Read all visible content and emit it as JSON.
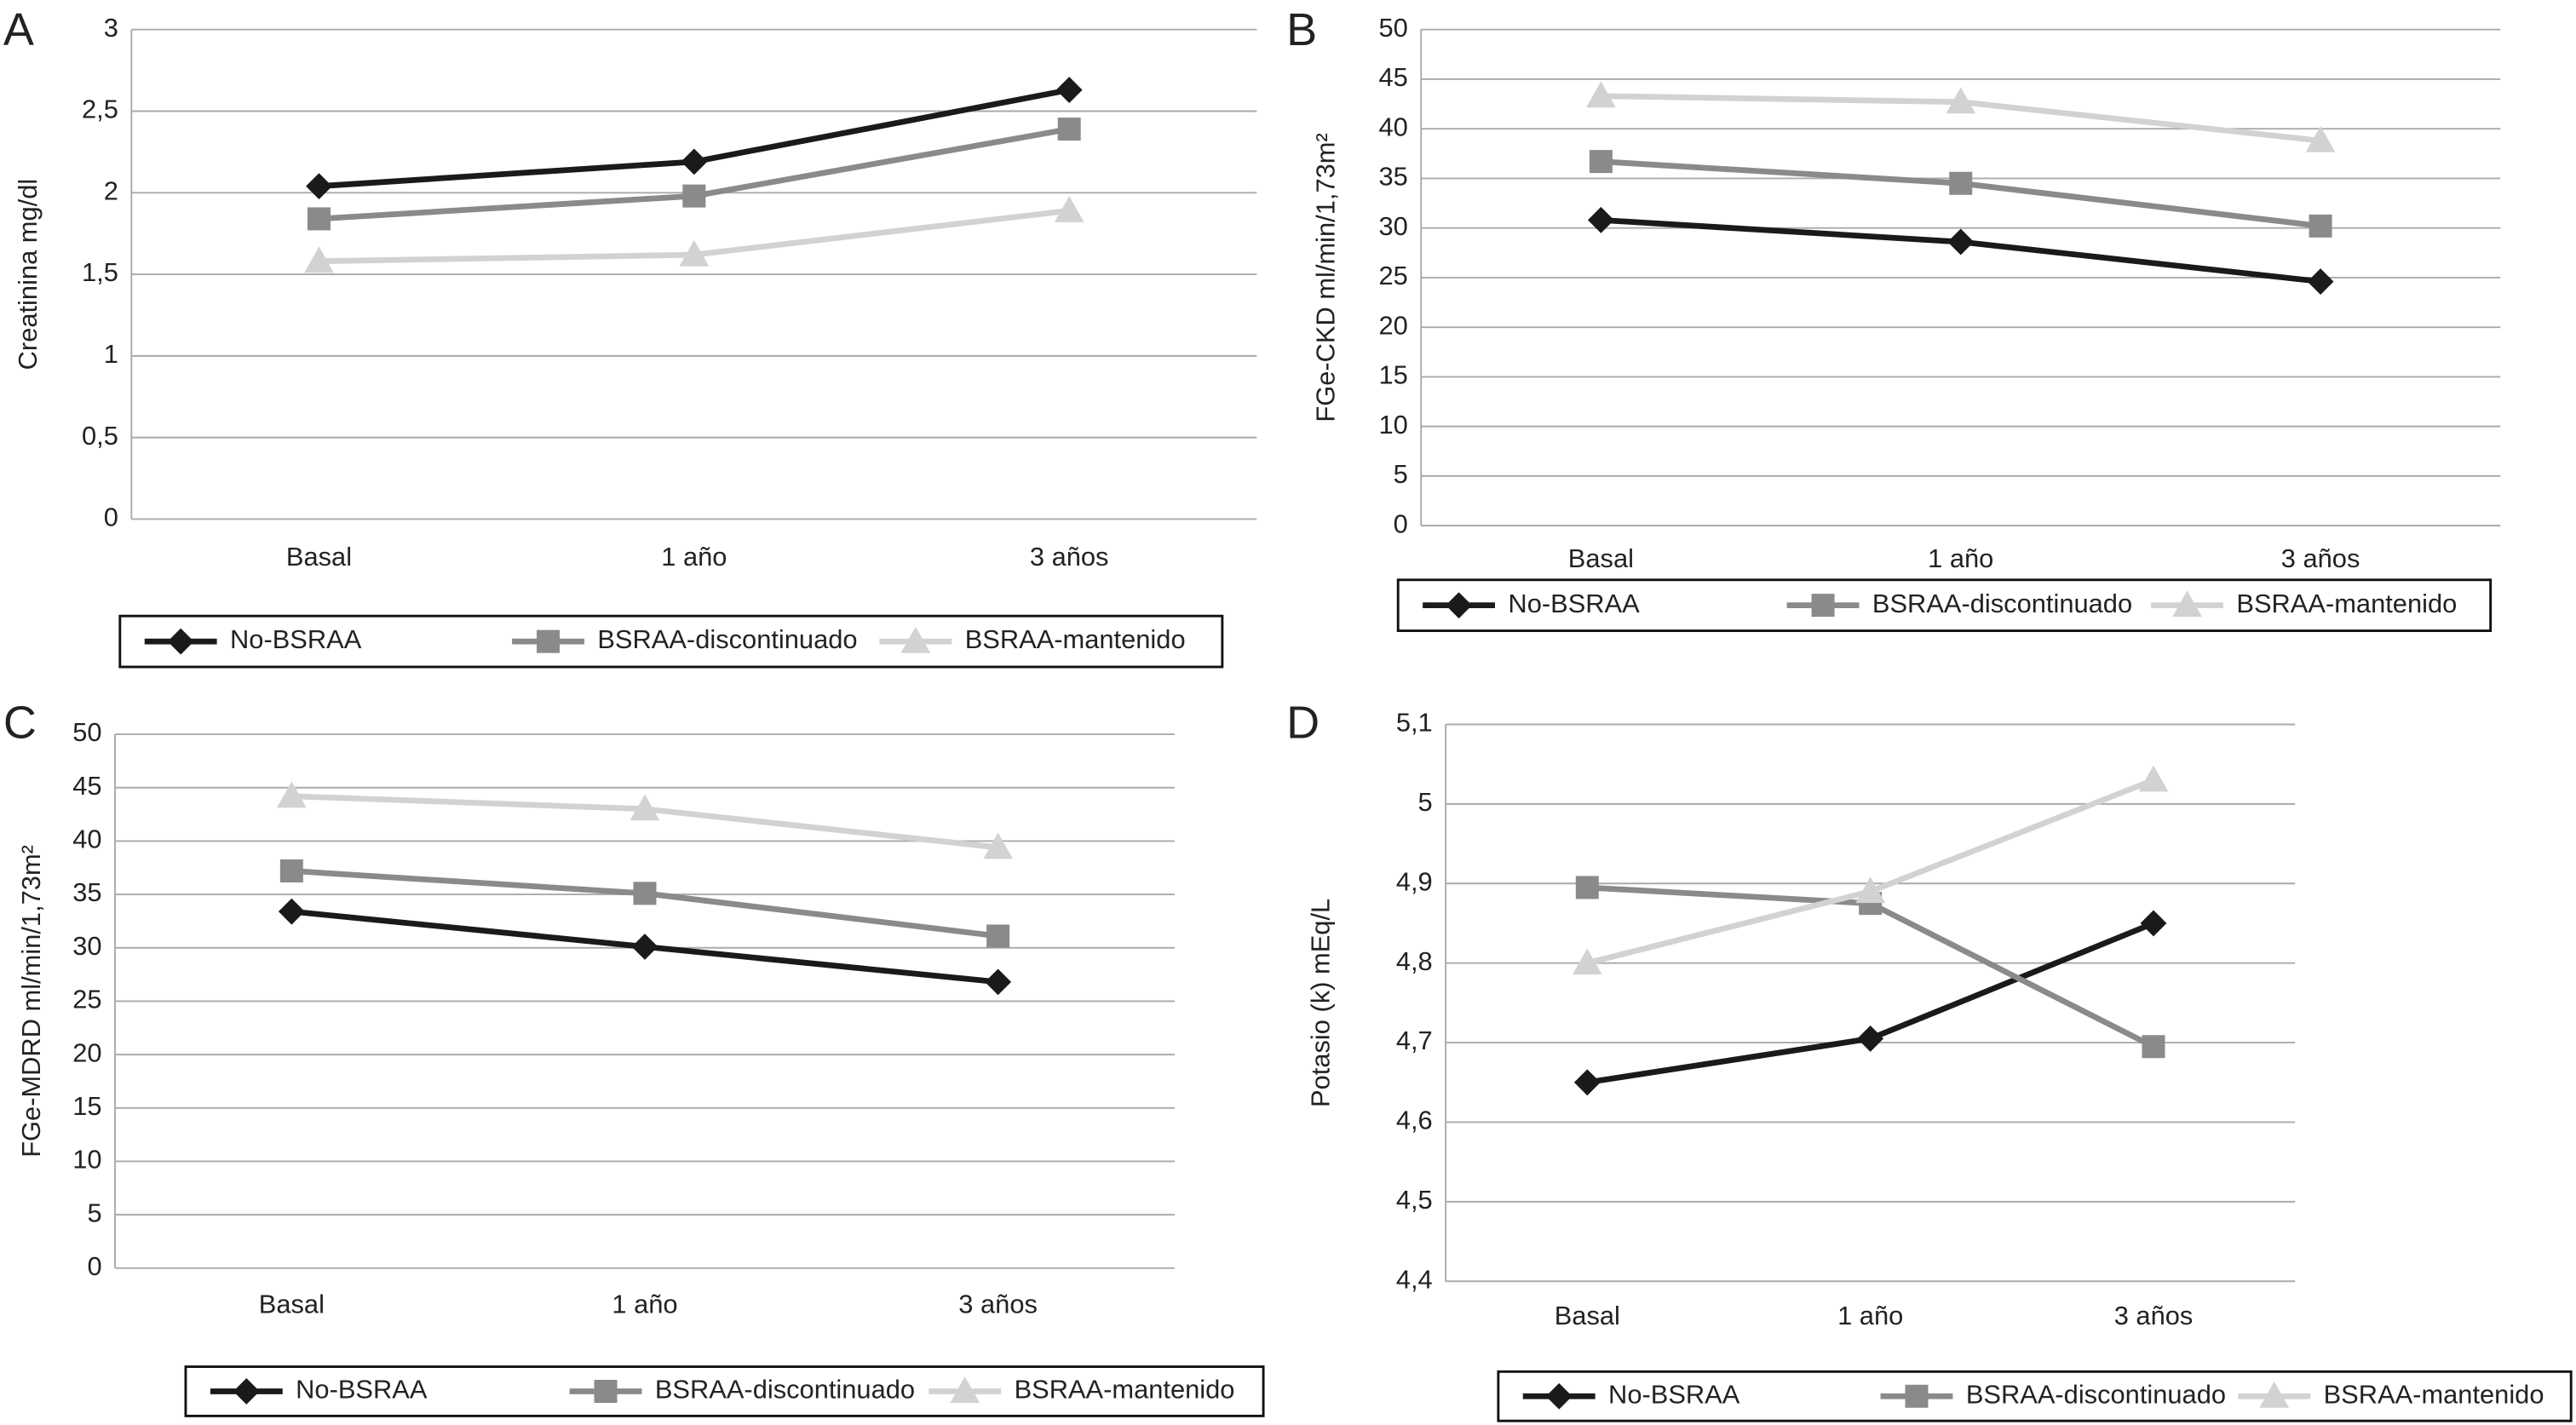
{
  "chart_data": [
    {
      "type": "line",
      "panel_label": "A",
      "ylabel": "Creatinina mg/dl",
      "categories": [
        "Basal",
        "1 año",
        "3 años"
      ],
      "series": [
        {
          "name": "No-BSRAA",
          "color": "#1a1a1a",
          "values": [
            2.04,
            2.19,
            2.63
          ]
        },
        {
          "name": "BSRAA-discontinuado",
          "color": "#8a8a8a",
          "values": [
            1.84,
            1.98,
            2.39
          ]
        },
        {
          "name": "BSRAA-mantenido",
          "color": "#d2d2d2",
          "values": [
            1.58,
            1.62,
            1.89
          ]
        }
      ],
      "ylim": [
        0,
        3
      ],
      "yticks": [
        0,
        {
          "value": 0.5,
          "label": "0,5"
        },
        1,
        {
          "value": 1.5,
          "label": "1,5"
        },
        2,
        {
          "value": 2.5,
          "label": "2,5"
        },
        3
      ],
      "grid": true
    },
    {
      "type": "line",
      "panel_label": "B",
      "ylabel": "FGe-CKD ml/min/1,73m²",
      "categories": [
        "Basal",
        "1 año",
        "3 años"
      ],
      "series": [
        {
          "name": "No-BSRAA",
          "color": "#1a1a1a",
          "values": [
            30.8,
            28.6,
            24.6
          ]
        },
        {
          "name": "BSRAA-discontinuado",
          "color": "#8a8a8a",
          "values": [
            36.7,
            34.5,
            30.2
          ]
        },
        {
          "name": "BSRAA-mantenido",
          "color": "#d2d2d2",
          "values": [
            43.3,
            42.7,
            38.8
          ]
        }
      ],
      "ylim": [
        0,
        50
      ],
      "yticks": [
        0,
        5,
        10,
        15,
        20,
        25,
        30,
        35,
        40,
        45,
        50
      ],
      "grid": true
    },
    {
      "type": "line",
      "panel_label": "C",
      "ylabel": "FGe-MDRD ml/min/1,73m²",
      "categories": [
        "Basal",
        "1 año",
        "3 años"
      ],
      "series": [
        {
          "name": "No-BSRAA",
          "color": "#1a1a1a",
          "values": [
            33.4,
            30.1,
            26.8
          ]
        },
        {
          "name": "BSRAA-discontinuado",
          "color": "#8a8a8a",
          "values": [
            37.2,
            35.1,
            31.1
          ]
        },
        {
          "name": "BSRAA-mantenido",
          "color": "#d2d2d2",
          "values": [
            44.2,
            43.0,
            39.4
          ]
        }
      ],
      "ylim": [
        0,
        50
      ],
      "yticks": [
        0,
        5,
        10,
        15,
        20,
        25,
        30,
        35,
        40,
        45,
        50
      ],
      "grid": true
    },
    {
      "type": "line",
      "panel_label": "D",
      "ylabel": "Potasio  (k) mEq/L",
      "categories": [
        "Basal",
        "1 año",
        "3 años"
      ],
      "series": [
        {
          "name": "No-BSRAA",
          "color": "#1a1a1a",
          "values": [
            4.65,
            4.705,
            4.85
          ]
        },
        {
          "name": "BSRAA-discontinuado",
          "color": "#8a8a8a",
          "values": [
            4.895,
            4.875,
            4.695
          ]
        },
        {
          "name": "BSRAA-mantenido",
          "color": "#d2d2d2",
          "values": [
            4.8,
            4.89,
            5.03
          ]
        }
      ],
      "ylim": [
        4.4,
        5.1
      ],
      "yticks": [
        {
          "value": 4.4,
          "label": "4,4"
        },
        {
          "value": 4.5,
          "label": "4,5"
        },
        {
          "value": 4.6,
          "label": "4,6"
        },
        {
          "value": 4.7,
          "label": "4,7"
        },
        {
          "value": 4.8,
          "label": "4,8"
        },
        {
          "value": 4.9,
          "label": "4,9"
        },
        5,
        {
          "value": 5.1,
          "label": "5,1"
        }
      ],
      "grid": true
    }
  ]
}
